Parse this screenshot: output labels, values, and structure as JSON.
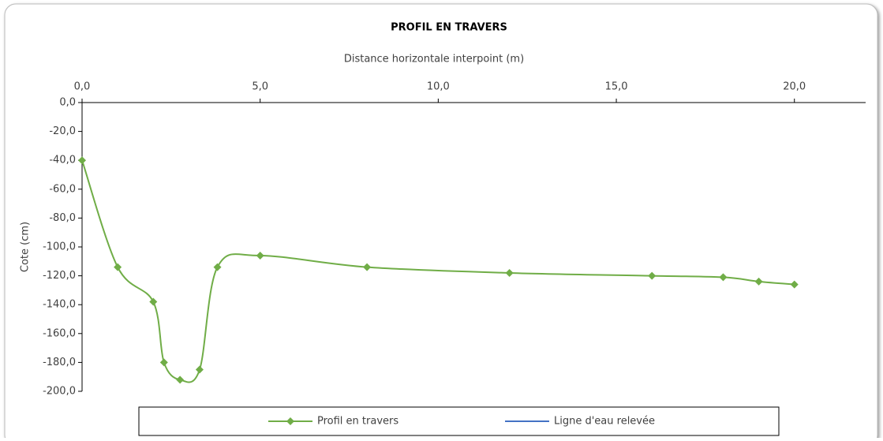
{
  "chart_data": {
    "type": "line",
    "title": "PROFIL EN TRAVERS",
    "x_label": "Distance horizontale interpoint (m)",
    "y_label": "Cote (cm)",
    "x": [
      0,
      1.0,
      2.0,
      2.3,
      2.75,
      3.3,
      3.8,
      5,
      8,
      12,
      16,
      18,
      19,
      20
    ],
    "series": [
      {
        "name": "Profil en travers",
        "color": "#70ad47",
        "values": [
          -40,
          -114,
          -138,
          -180,
          -192,
          -185,
          -114,
          -106,
          -114,
          -118,
          -120,
          -121,
          -124,
          -126
        ]
      },
      {
        "name": "Ligne d'eau relevée",
        "color": "#4472c4",
        "values": [
          null,
          null,
          null,
          null,
          null,
          null,
          null,
          null,
          null,
          null,
          null,
          null,
          null,
          null
        ]
      }
    ],
    "xlim": [
      0,
      22
    ],
    "xticks": [
      {
        "value": 0,
        "label": "0,0"
      },
      {
        "value": 5,
        "label": "5,0"
      },
      {
        "value": 10,
        "label": "10,0"
      },
      {
        "value": 15,
        "label": "15,0"
      },
      {
        "value": 20,
        "label": "20,0"
      }
    ],
    "ylim": [
      -200,
      0
    ],
    "yticks": [
      {
        "value": 0,
        "label": "0,0"
      },
      {
        "value": -20,
        "label": "-20,0"
      },
      {
        "value": -40,
        "label": "-40,0"
      },
      {
        "value": -60,
        "label": "-60,0"
      },
      {
        "value": -80,
        "label": "-80,0"
      },
      {
        "value": -100,
        "label": "-100,0"
      },
      {
        "value": -120,
        "label": "-120,0"
      },
      {
        "value": -140,
        "label": "-140,0"
      },
      {
        "value": -160,
        "label": "-160,0"
      },
      {
        "value": -180,
        "label": "-180,0"
      },
      {
        "value": -200,
        "label": "-200,0"
      }
    ],
    "smooth": true,
    "x_axis_position": "top",
    "legend": "bottom"
  }
}
